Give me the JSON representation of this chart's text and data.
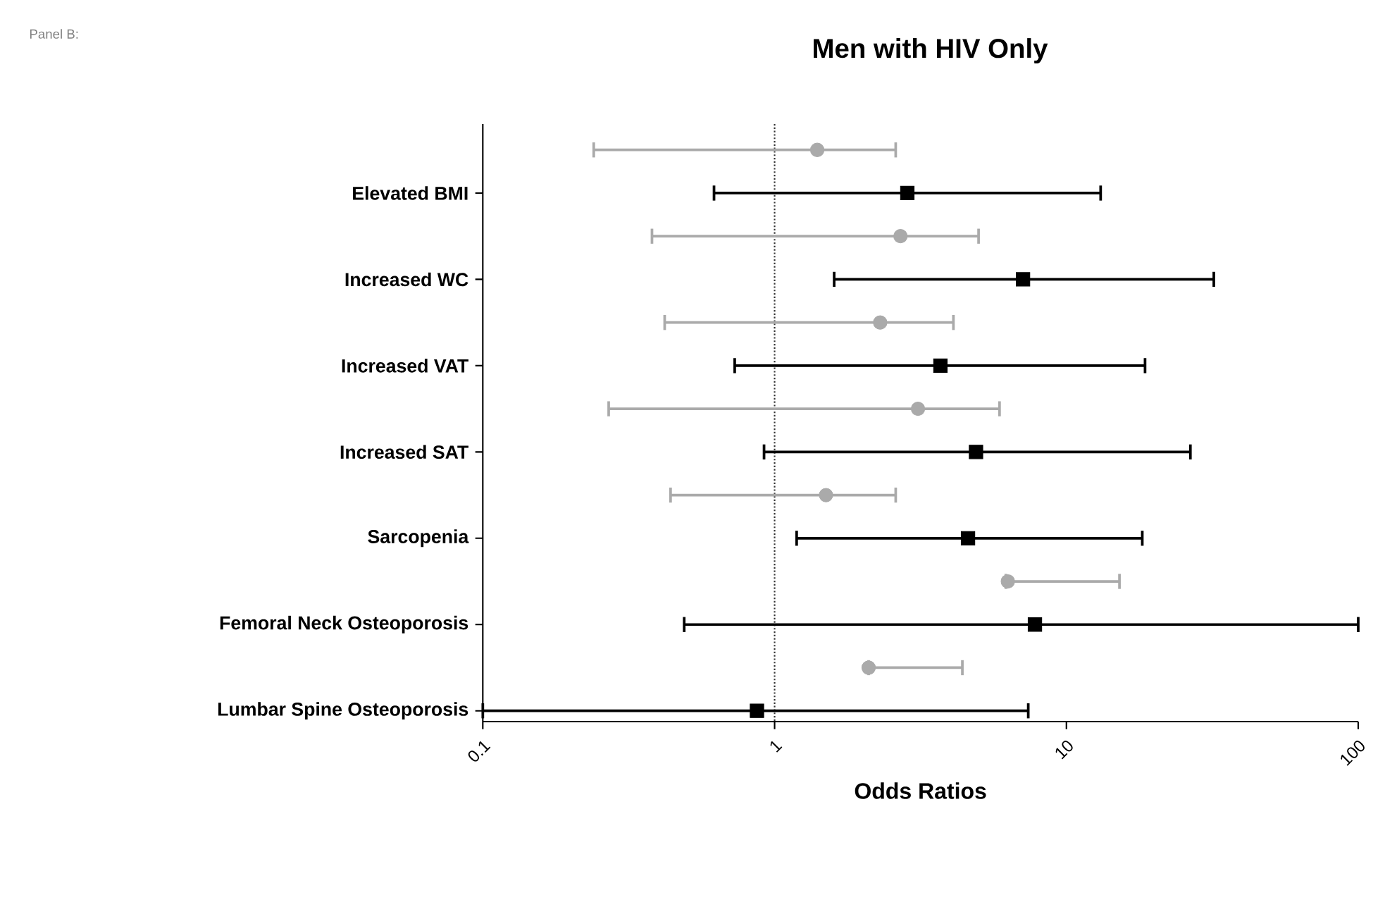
{
  "chart_data": {
    "type": "scatter",
    "orientation": "horizontal",
    "title": "Men with HIV Only",
    "xlabel": "Odds Ratios",
    "annotations": [
      "Panel B:"
    ],
    "categories": [
      null,
      "Elevated BMI",
      null,
      "Increased WC",
      null,
      "Increased VAT",
      null,
      "Increased SAT",
      null,
      "Sarcopenia",
      null,
      "Femoral Neck Osteoporosis",
      null,
      "Lumbar Spine Osteoporosis"
    ],
    "log": "x",
    "xlim": [
      0.1,
      100
    ],
    "xticks": [
      0.1,
      1,
      10,
      100
    ],
    "ref_lines": [
      {
        "axis": "x",
        "value": 1,
        "line_style": "dotted",
        "color": "#333333"
      }
    ],
    "series": [
      {
        "color": "#aaaaaa",
        "marker": "circle",
        "values": [
          1.4,
          null,
          2.7,
          null,
          2.3,
          null,
          3.1,
          null,
          1.5,
          null,
          6.3,
          null,
          2.1,
          null
        ],
        "errors": [
          [
            0.24,
            2.6
          ],
          null,
          [
            0.38,
            5.0
          ],
          null,
          [
            0.42,
            4.1
          ],
          null,
          [
            0.27,
            5.9
          ],
          null,
          [
            0.44,
            2.6
          ],
          null,
          [
            6.2,
            15.2
          ],
          null,
          [
            2.1,
            4.4
          ],
          null
        ]
      },
      {
        "color": "#000000",
        "marker": "square",
        "values": [
          null,
          2.85,
          null,
          7.1,
          null,
          3.7,
          null,
          4.9,
          null,
          4.6,
          null,
          7.8,
          null,
          0.87
        ],
        "errors": [
          null,
          [
            0.62,
            13.1
          ],
          null,
          [
            1.6,
            32
          ],
          null,
          [
            0.73,
            18.6
          ],
          null,
          [
            0.92,
            26.6
          ],
          null,
          [
            1.19,
            18.2
          ],
          null,
          [
            0.49,
            100
          ],
          null,
          [
            0.1,
            7.4
          ]
        ]
      }
    ]
  }
}
